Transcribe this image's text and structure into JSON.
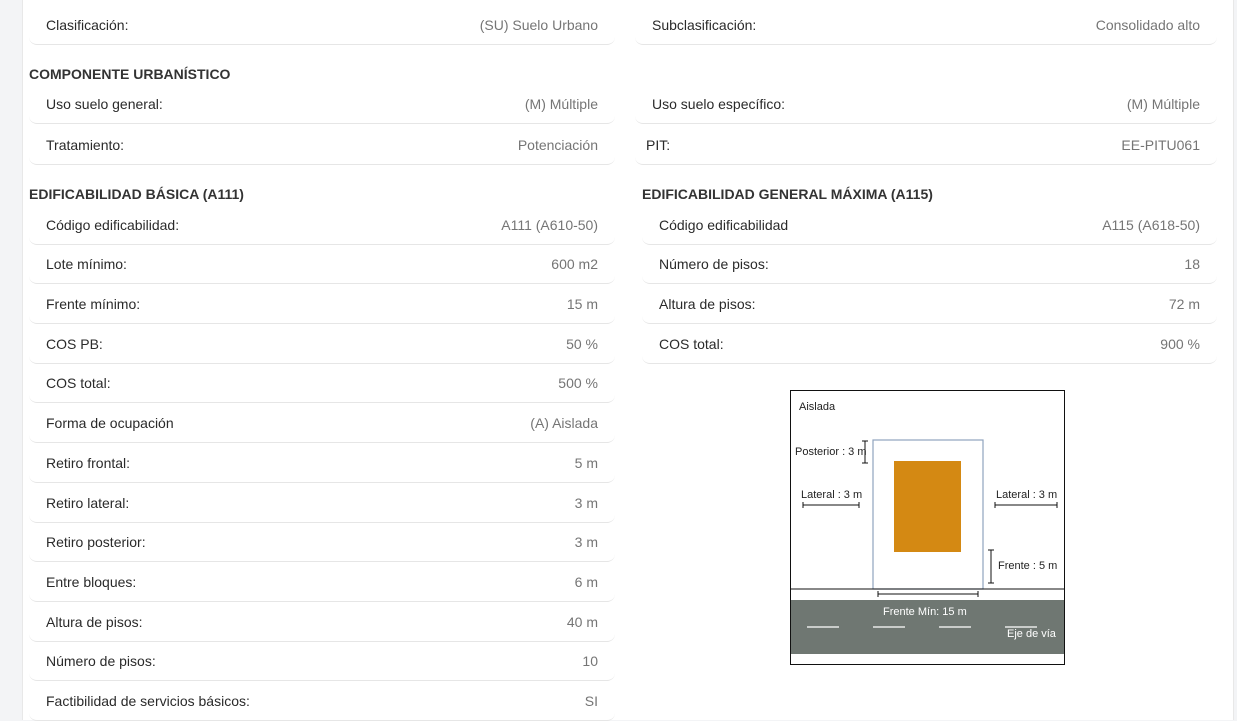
{
  "classification": {
    "clasificacion_label": "Clasificación:",
    "clasificacion_value": "(SU) Suelo Urbano",
    "subclasificacion_label": "Subclasificación:",
    "subclasificacion_value": "Consolidado alto"
  },
  "componente": {
    "title": "COMPONENTE URBANÍSTICO",
    "uso_general_label": "Uso suelo general:",
    "uso_general_value": "(M) Múltiple",
    "uso_especifico_label": "Uso suelo específico:",
    "uso_especifico_value": "(M) Múltiple",
    "tratamiento_label": "Tratamiento:",
    "tratamiento_value": "Potenciación",
    "pit_label": "PIT:",
    "pit_value": "EE-PITU061"
  },
  "basica": {
    "title": "EDIFICABILIDAD BÁSICA (A111)",
    "rows": [
      {
        "label": "Código edificabilidad:",
        "value": "A111 (A610-50)"
      },
      {
        "label": "Lote mínimo:",
        "value": "600 m2"
      },
      {
        "label": "Frente mínimo:",
        "value": "15 m"
      },
      {
        "label": "COS PB:",
        "value": "50 %"
      },
      {
        "label": "COS total:",
        "value": "500 %"
      },
      {
        "label": "Forma de ocupación",
        "value": "(A) Aislada"
      },
      {
        "label": "Retiro frontal:",
        "value": "5 m"
      },
      {
        "label": "Retiro lateral:",
        "value": "3 m"
      },
      {
        "label": "Retiro posterior:",
        "value": "3 m"
      },
      {
        "label": "Entre bloques:",
        "value": "6 m"
      },
      {
        "label": "Altura de pisos:",
        "value": "40 m"
      },
      {
        "label": "Número de pisos:",
        "value": "10"
      },
      {
        "label": "Factibilidad de servicios básicos:",
        "value": "SI"
      }
    ]
  },
  "maxima": {
    "title": "EDIFICABILIDAD GENERAL MÁXIMA (A115)",
    "rows": [
      {
        "label": "Código edificabilidad",
        "value": "A115 (A618-50)"
      },
      {
        "label": "Número de pisos:",
        "value": "18"
      },
      {
        "label": "Altura de pisos:",
        "value": "72 m"
      },
      {
        "label": "COS total:",
        "value": "900 %"
      }
    ]
  },
  "diagram": {
    "title": "Aislada",
    "posterior": "Posterior : 3 m",
    "lateral_left": "Lateral : 3 m",
    "lateral_right": "Lateral : 3 m",
    "frente": "Frente : 5 m",
    "frente_min": "Frente Mín: 15 m",
    "eje_via": "Eje de vía",
    "colors": {
      "building": "#d48913",
      "road": "#6f7772",
      "lot_border": "#8fa4bf"
    }
  }
}
